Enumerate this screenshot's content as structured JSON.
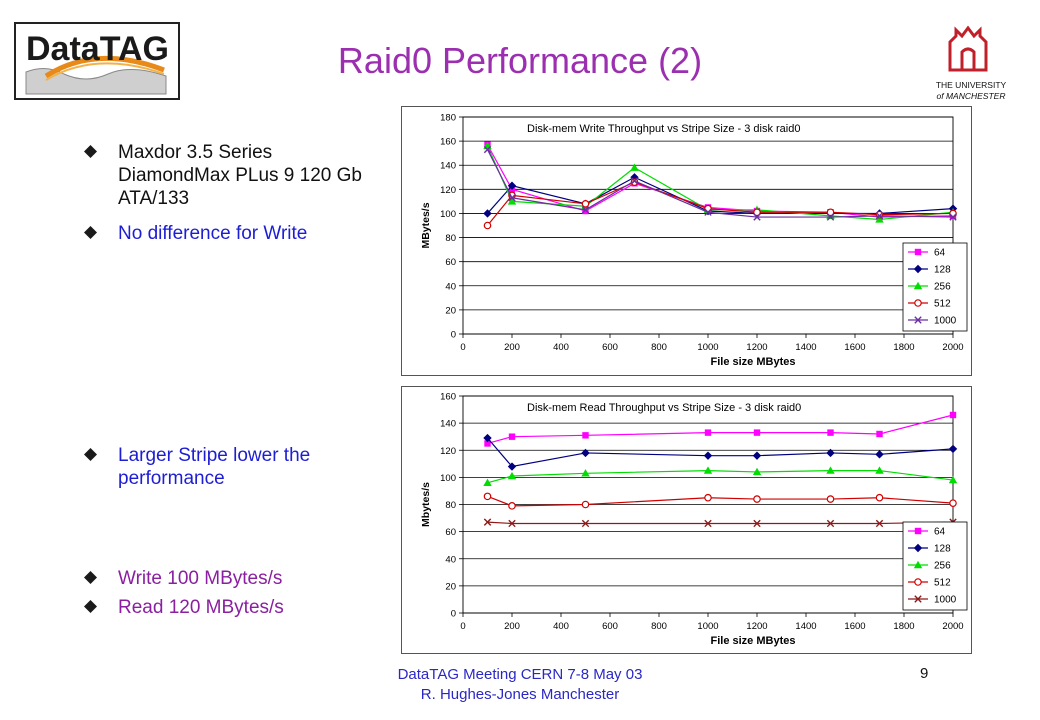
{
  "slide": {
    "title": "Raid0 Performance (2)",
    "logo_left": "DataTAG",
    "logo_right_line1": "THE UNIVERSITY",
    "logo_right_line2": "of MANCHESTER",
    "bullets": [
      {
        "text": "Maxdor 3.5 Series DiamondMax PLus 9 120 Gb ATA/133",
        "color": "#111111"
      },
      {
        "text": "No difference for Write",
        "color": "#1d1dd4"
      },
      {
        "text": "Larger Stripe lower the performance",
        "color": "#1d1dd4"
      },
      {
        "text": "Write 100 MBytes/s",
        "color": "#8a1fa0"
      },
      {
        "text": "Read 120 MBytes/s",
        "color": "#8a1fa0"
      }
    ],
    "footer_line1": "DataTAG Meeting CERN 7-8 May 03",
    "footer_line2": "R. Hughes-Jones  Manchester",
    "page_number": "9"
  },
  "chart_data": [
    {
      "type": "line",
      "title": "Disk-mem Write Throughput vs Stripe Size - 3 disk raid0",
      "xlabel": "File size MBytes",
      "ylabel": "MBytes/s",
      "xlim": [
        0,
        2000
      ],
      "ylim": [
        0,
        180
      ],
      "xticks": [
        0,
        200,
        400,
        600,
        800,
        1000,
        1200,
        1400,
        1600,
        1800,
        2000
      ],
      "yticks": [
        0,
        20,
        40,
        60,
        80,
        100,
        120,
        140,
        160,
        180
      ],
      "grid": true,
      "legend": "right",
      "x": [
        100,
        200,
        500,
        700,
        1000,
        1200,
        1500,
        1700,
        2000
      ],
      "series": [
        {
          "name": "64",
          "color": "#ff00ff",
          "marker": "square",
          "values": [
            157,
            120,
            102,
            125,
            105,
            102,
            101,
            97,
            98
          ]
        },
        {
          "name": "128",
          "color": "#000080",
          "marker": "diamond",
          "values": [
            100,
            123,
            108,
            130,
            102,
            100,
            100,
            100,
            104
          ]
        },
        {
          "name": "256",
          "color": "#00dd00",
          "marker": "triangle",
          "values": [
            156,
            110,
            106,
            138,
            103,
            103,
            98,
            95,
            101
          ]
        },
        {
          "name": "512",
          "color": "#d00000",
          "marker": "circle",
          "values": [
            90,
            115,
            108,
            126,
            104,
            101,
            101,
            99,
            100
          ]
        },
        {
          "name": "1000",
          "color": "#6b2fa0",
          "marker": "x",
          "values": [
            153,
            113,
            103,
            127,
            101,
            97,
            97,
            98,
            97
          ]
        }
      ]
    },
    {
      "type": "line",
      "title": "Disk-mem Read Throughput vs Stripe Size - 3 disk raid0",
      "xlabel": "File size MBytes",
      "ylabel": "Mbytes/s",
      "xlim": [
        0,
        2000
      ],
      "ylim": [
        0,
        160
      ],
      "xticks": [
        0,
        200,
        400,
        600,
        800,
        1000,
        1200,
        1400,
        1600,
        1800,
        2000
      ],
      "yticks": [
        0,
        20,
        40,
        60,
        80,
        100,
        120,
        140,
        160
      ],
      "grid": true,
      "legend": "right",
      "x": [
        100,
        200,
        500,
        1000,
        1200,
        1500,
        1700,
        2000
      ],
      "series": [
        {
          "name": "64",
          "color": "#ff00ff",
          "marker": "square",
          "values": [
            125,
            130,
            131,
            133,
            133,
            133,
            132,
            146
          ]
        },
        {
          "name": "128",
          "color": "#000080",
          "marker": "diamond",
          "values": [
            129,
            108,
            118,
            116,
            116,
            118,
            117,
            121
          ]
        },
        {
          "name": "256",
          "color": "#00dd00",
          "marker": "triangle",
          "values": [
            96,
            101,
            103,
            105,
            104,
            105,
            105,
            98
          ]
        },
        {
          "name": "512",
          "color": "#d00000",
          "marker": "circle",
          "values": [
            86,
            79,
            80,
            85,
            84,
            84,
            85,
            81
          ]
        },
        {
          "name": "1000",
          "color": "#8b1a1a",
          "marker": "x",
          "values": [
            67,
            66,
            66,
            66,
            66,
            66,
            66,
            67
          ]
        }
      ]
    }
  ]
}
